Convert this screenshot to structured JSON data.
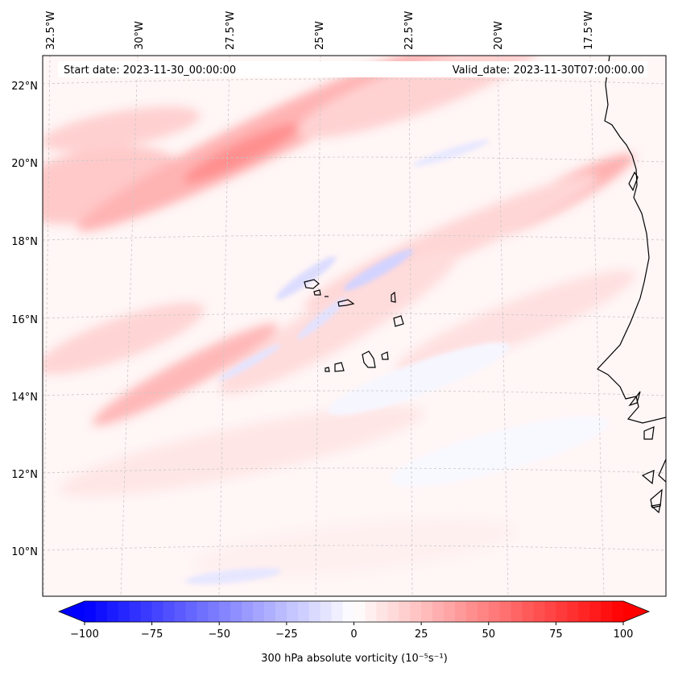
{
  "header": {
    "start_date": "Start date: 2023-11-30_00:00:00",
    "valid_date": "Valid_date: 2023-11-30T07:00:00.00"
  },
  "lon_ticks": [
    "32.5°W",
    "30°W",
    "27.5°W",
    "25°W",
    "22.5°W",
    "20°W",
    "17.5°W"
  ],
  "lat_ticks": [
    "22°N",
    "20°N",
    "18°N",
    "16°N",
    "14°N",
    "12°N",
    "10°N"
  ],
  "colorbar": {
    "min": -100,
    "max": 100,
    "ticks": [
      "−100",
      "−75",
      "−50",
      "−25",
      "0",
      "25",
      "50",
      "75",
      "100"
    ],
    "label": "300 hPa absolute vorticity (10⁻⁵s⁻¹)",
    "neg_color": "#0000ff",
    "mid_color": "#ffffff",
    "pos_color": "#ff0000"
  },
  "colors": {
    "coast": "#000000",
    "grid": "#c8c8c8",
    "field_base": "#fff6f6"
  }
}
